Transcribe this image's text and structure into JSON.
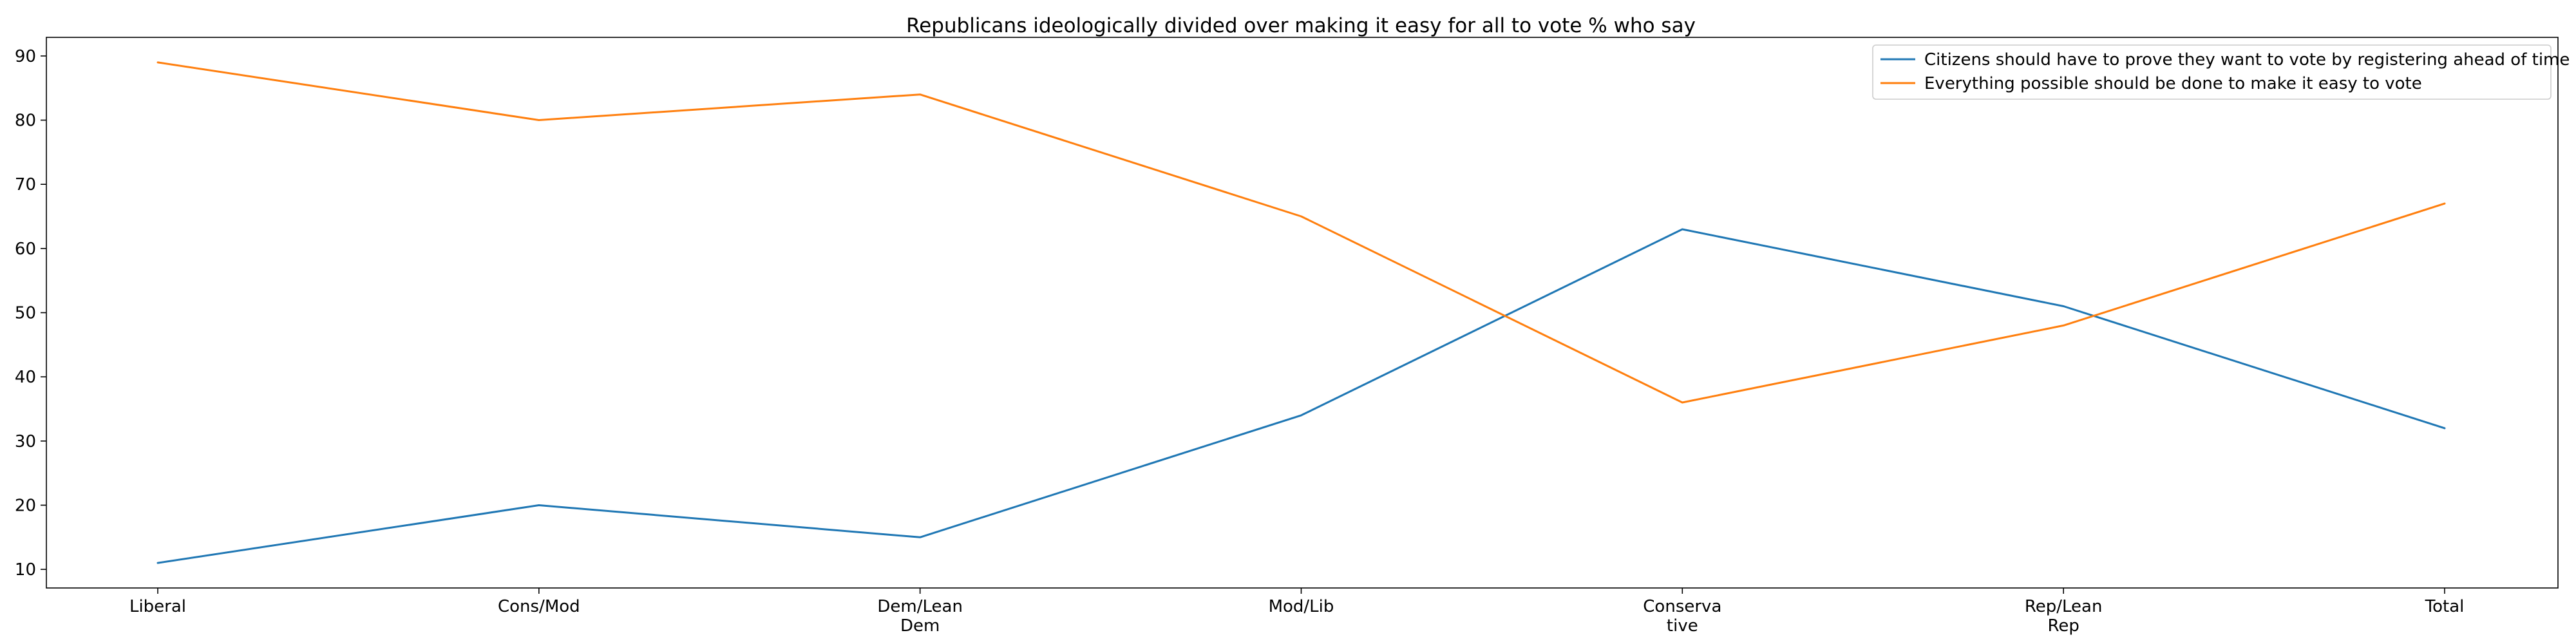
{
  "chart_data": {
    "type": "line",
    "title": "Republicans ideologically divided over making it easy for all to vote % who say",
    "xlabel": "",
    "ylabel": "",
    "categories": [
      [
        "Liberal"
      ],
      [
        "Cons/Mod"
      ],
      [
        "Dem/Lean",
        "Dem"
      ],
      [
        "Mod/Lib"
      ],
      [
        "Conserva",
        "tive"
      ],
      [
        "Rep/Lean",
        "Rep"
      ],
      [
        "Total"
      ]
    ],
    "series": [
      {
        "name": "Citizens should have to prove they want to vote by registering ahead of time",
        "color": "#1f77b4",
        "values": [
          11,
          20,
          15,
          34,
          63,
          51,
          32
        ]
      },
      {
        "name": "Everything possible should be done to make it easy to vote",
        "color": "#ff7f0e",
        "values": [
          89,
          80,
          84,
          65,
          36,
          48,
          67
        ]
      }
    ],
    "ylim": [
      7.1,
      92.9
    ],
    "yticks": [
      10,
      20,
      30,
      40,
      50,
      60,
      70,
      80,
      90
    ],
    "grid": false,
    "legend_position": "top-right"
  }
}
